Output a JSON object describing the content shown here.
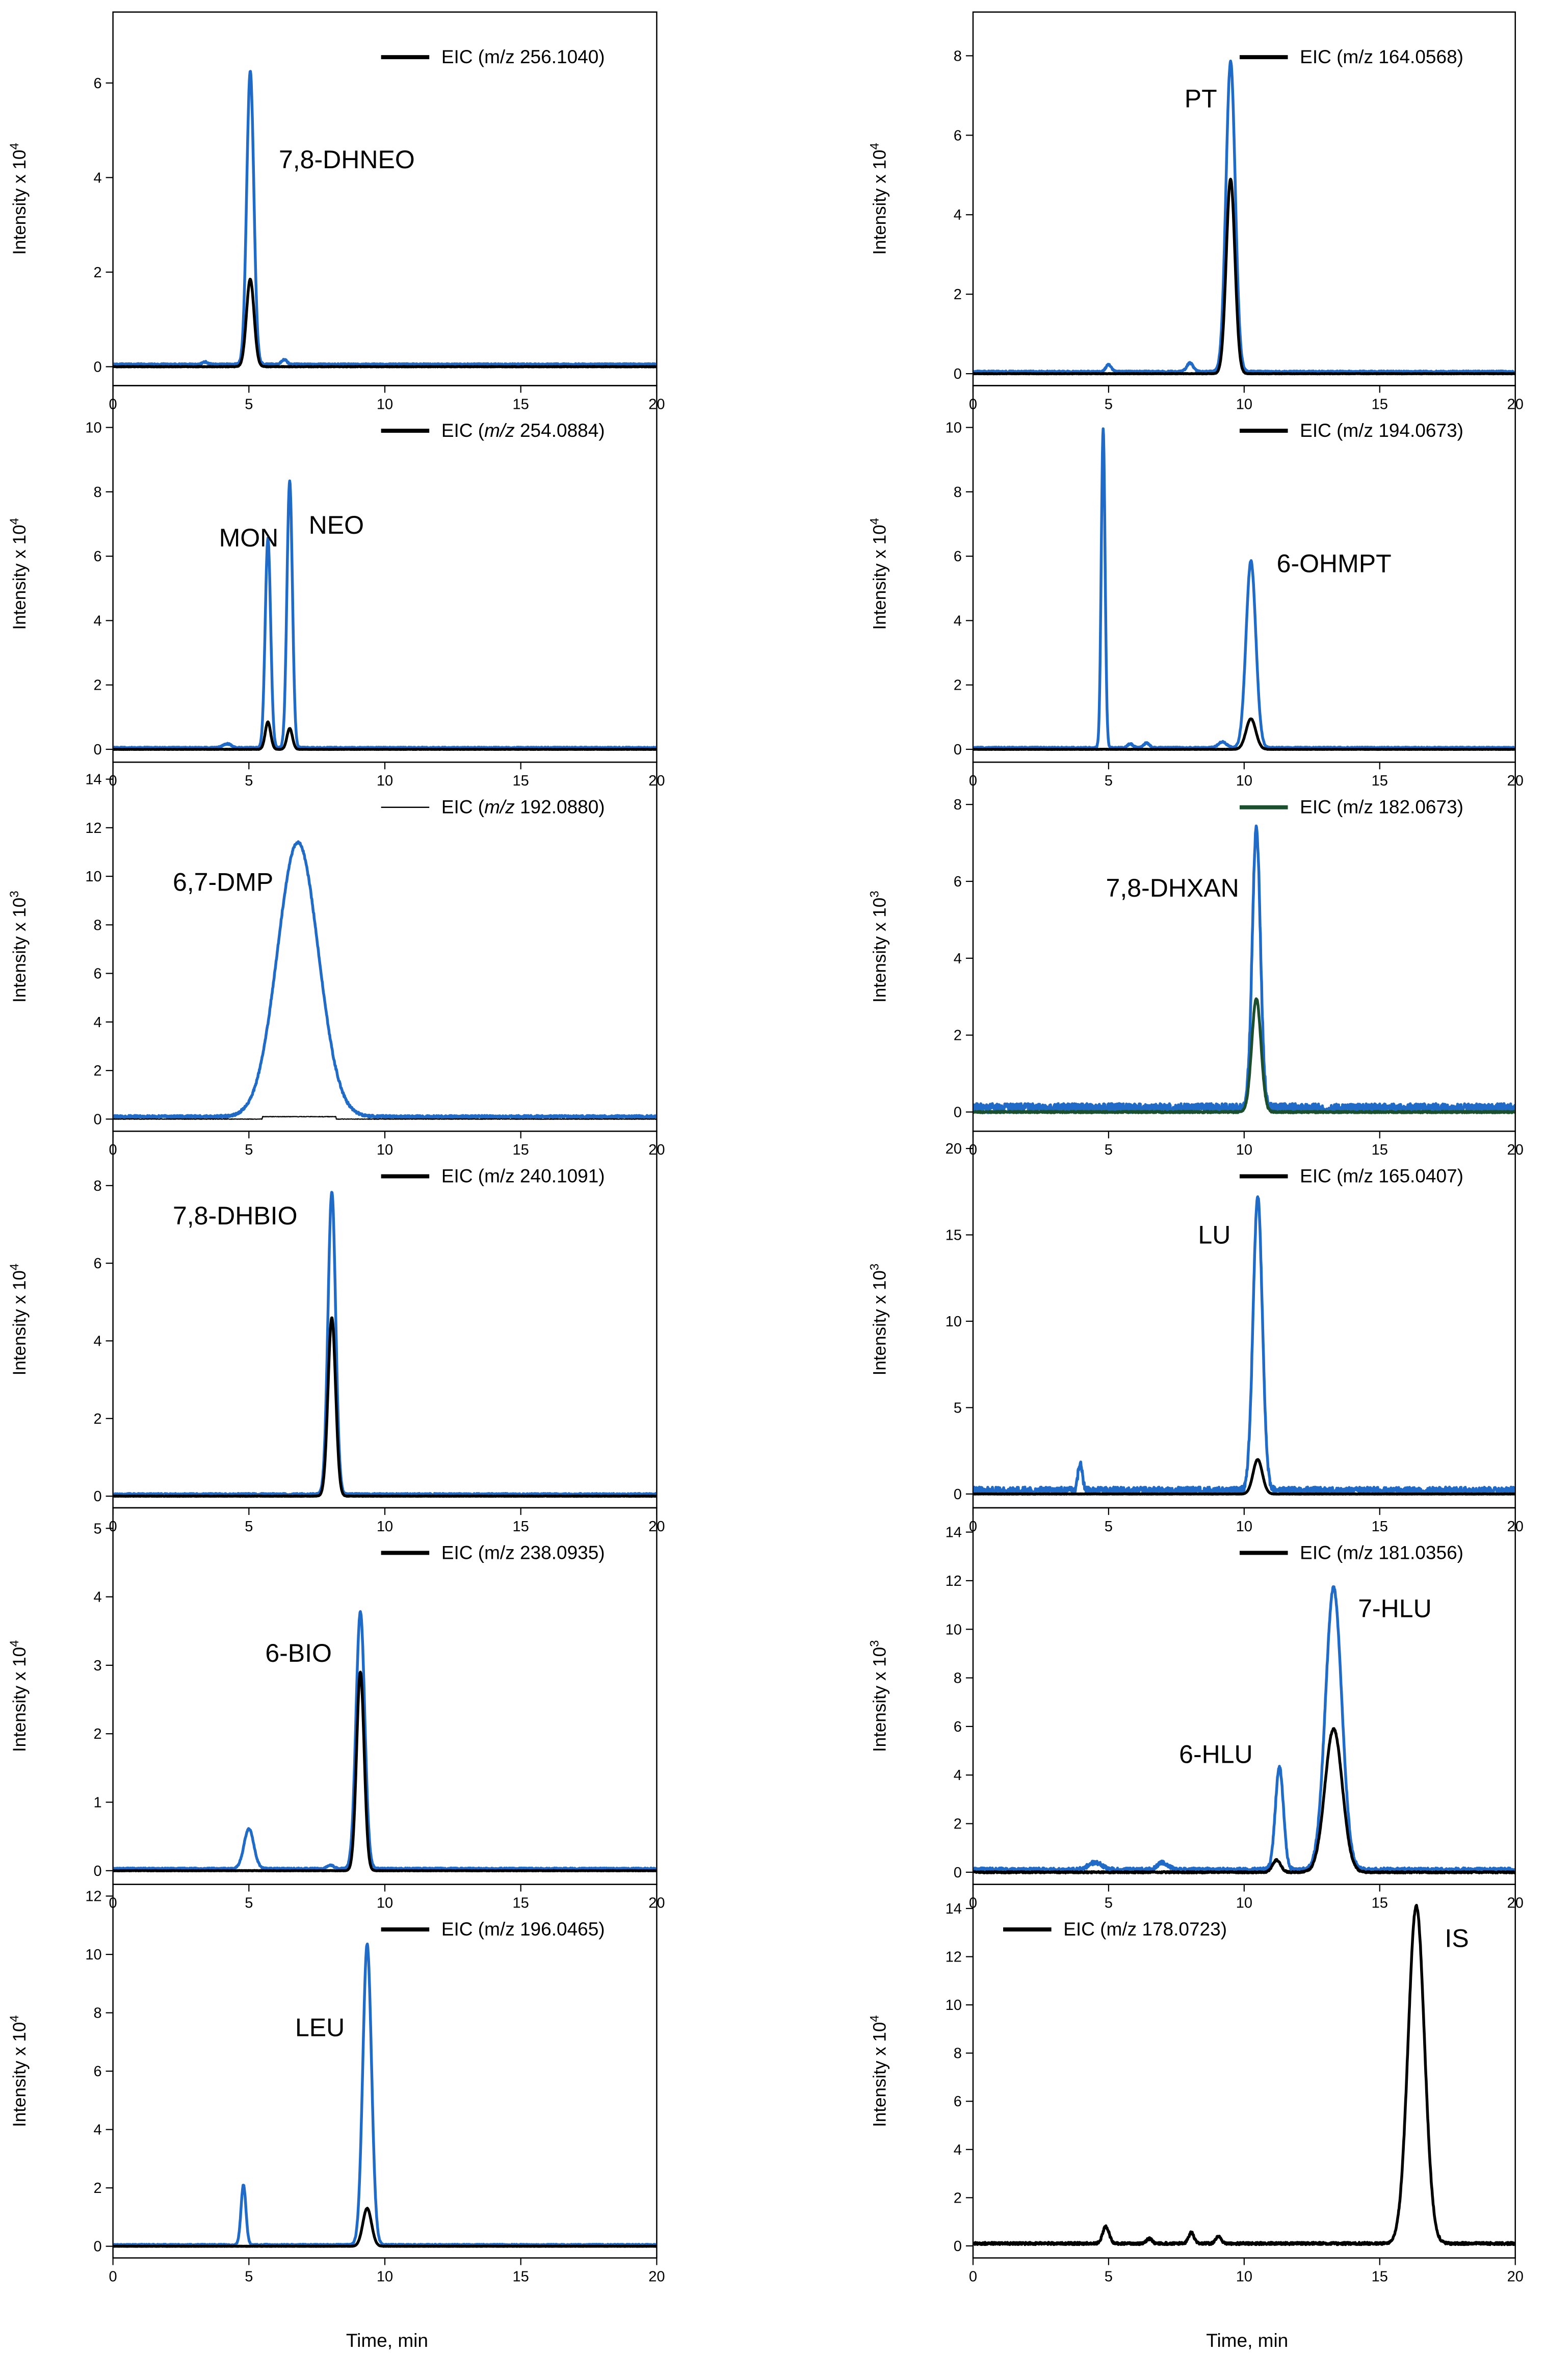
{
  "figure": {
    "xlabel_text": "Time, min",
    "colors": {
      "blue": "#1f6bc7",
      "black": "#000000",
      "green": "#1b4f2e",
      "frame": "#000000"
    }
  },
  "chart_data": [
    {
      "type": "line",
      "panel": "L1",
      "title": "",
      "xlabel": "Time, min",
      "ylabel": "Intensity x 10^4",
      "y_exponent": "4",
      "xlim": [
        0,
        20
      ],
      "ylim": [
        -0.4,
        7.5
      ],
      "yticks": [
        0,
        2,
        4,
        6
      ],
      "xticks": [
        0,
        5,
        10,
        15,
        20
      ],
      "show_xticklabels": true,
      "legend": {
        "prefix": "EIC (m/z 256.1040)",
        "italic_mz": false,
        "position": "top-right",
        "color": "#000000"
      },
      "annotations": [
        {
          "text": "7,8-DHNEO",
          "x": 6.1,
          "y": 4.2
        }
      ],
      "baseline": {
        "blue": 0.05,
        "black": 0.0
      },
      "series": [
        {
          "name": "blue trace",
          "color": "#1f6bc7",
          "peaks": [
            {
              "x": 5.05,
              "y": 6.2,
              "w": 0.13
            },
            {
              "x": 3.4,
              "y": 0.05,
              "w": 0.1
            },
            {
              "x": 6.3,
              "y": 0.1,
              "w": 0.1
            }
          ],
          "noise": 0.015
        },
        {
          "name": "EIC (m/z 256.1040)",
          "color": "#000000",
          "peaks": [
            {
              "x": 5.05,
              "y": 1.85,
              "w": 0.14
            }
          ],
          "noise": 0.005
        }
      ]
    },
    {
      "type": "line",
      "panel": "L2",
      "title": "",
      "xlabel": "Time, min",
      "ylabel": "Intensity x 10^4",
      "y_exponent": "4",
      "xlim": [
        0,
        20
      ],
      "ylim": [
        -0.4,
        11.3
      ],
      "yticks": [
        0,
        2,
        4,
        6,
        8,
        10
      ],
      "xticks": [
        0,
        5,
        10,
        15,
        20
      ],
      "show_xticklabels": true,
      "legend": {
        "prefix": "EIC (",
        "mz": "m/z",
        "value": "254.0884)",
        "italic_mz": true,
        "position": "top-right",
        "color": "#000000"
      },
      "annotations": [
        {
          "text": "MON",
          "x": 3.9,
          "y": 6.3
        },
        {
          "text": "NEO",
          "x": 7.2,
          "y": 6.7
        }
      ],
      "baseline": {
        "blue": 0.05,
        "black": 0.0
      },
      "series": [
        {
          "name": "blue trace",
          "color": "#1f6bc7",
          "peaks": [
            {
              "x": 5.7,
              "y": 6.5,
              "w": 0.1
            },
            {
              "x": 6.5,
              "y": 8.3,
              "w": 0.1
            },
            {
              "x": 4.2,
              "y": 0.12,
              "w": 0.15
            }
          ],
          "noise": 0.02
        },
        {
          "name": "EIC (m/z 254.0884)",
          "color": "#000000",
          "peaks": [
            {
              "x": 5.7,
              "y": 0.85,
              "w": 0.1
            },
            {
              "x": 6.5,
              "y": 0.65,
              "w": 0.1
            }
          ],
          "noise": 0.005
        }
      ]
    },
    {
      "type": "line",
      "panel": "L3",
      "title": "",
      "xlabel": "Time, min",
      "ylabel": "Intensity x 10^3",
      "y_exponent": "3",
      "xlim": [
        0,
        20
      ],
      "ylim": [
        -0.5,
        14.7
      ],
      "yticks": [
        0,
        2,
        4,
        6,
        8,
        10,
        12,
        14
      ],
      "xticks": [
        0,
        5,
        10,
        15,
        20
      ],
      "show_xticklabels": true,
      "legend": {
        "prefix": "EIC (",
        "mz": "m/z",
        "value": "192.0880)",
        "italic_mz": true,
        "position": "top-right",
        "color": "#000000",
        "thin": true
      },
      "annotations": [
        {
          "text": "6,7-DMP",
          "x": 2.2,
          "y": 9.4
        }
      ],
      "baseline": {
        "blue": 0.1,
        "black": 0.0
      },
      "series": [
        {
          "name": "blue trace",
          "color": "#1f6bc7",
          "peaks": [
            {
              "x": 6.8,
              "y": 11.3,
              "w": 0.75
            }
          ],
          "noise": 0.05
        },
        {
          "name": "EIC (m/z 192.0880)",
          "color": "#000000",
          "segment": [
            5.5,
            8.2,
            0.1
          ],
          "noise": 0.01
        }
      ]
    },
    {
      "type": "line",
      "panel": "L4",
      "title": "",
      "xlabel": "Time, min",
      "ylabel": "Intensity x 10^4",
      "y_exponent": "4",
      "xlim": [
        0,
        20
      ],
      "ylim": [
        -0.3,
        9.4
      ],
      "yticks": [
        0,
        2,
        4,
        6,
        8
      ],
      "xticks": [
        0,
        5,
        10,
        15,
        20
      ],
      "show_xticklabels": true,
      "legend": {
        "prefix": "EIC (m/z 240.1091)",
        "italic_mz": false,
        "position": "top-right",
        "color": "#000000"
      },
      "annotations": [
        {
          "text": "7,8-DHBIO",
          "x": 2.2,
          "y": 7.0
        }
      ],
      "baseline": {
        "blue": 0.05,
        "black": 0.0
      },
      "series": [
        {
          "name": "blue trace",
          "color": "#1f6bc7",
          "peaks": [
            {
              "x": 8.05,
              "y": 7.8,
              "w": 0.14
            }
          ],
          "noise": 0.02
        },
        {
          "name": "EIC (m/z 240.1091)",
          "color": "#000000",
          "peaks": [
            {
              "x": 8.05,
              "y": 4.6,
              "w": 0.14
            }
          ],
          "noise": 0.005
        }
      ]
    },
    {
      "type": "line",
      "panel": "L5",
      "title": "",
      "xlabel": "Time, min",
      "ylabel": "Intensity x 10^4",
      "y_exponent": "4",
      "xlim": [
        0,
        20
      ],
      "ylim": [
        -0.2,
        5.3
      ],
      "yticks": [
        0,
        1,
        2,
        3,
        4,
        5
      ],
      "xticks": [
        0,
        5,
        10,
        15,
        20
      ],
      "show_xticklabels": true,
      "legend": {
        "prefix": "EIC (m/z 238.0935)",
        "italic_mz": false,
        "position": "top-right",
        "color": "#000000"
      },
      "annotations": [
        {
          "text": "6-BIO",
          "x": 5.6,
          "y": 3.05
        }
      ],
      "baseline": {
        "blue": 0.03,
        "black": 0.0
      },
      "series": [
        {
          "name": "blue trace",
          "color": "#1f6bc7",
          "peaks": [
            {
              "x": 9.1,
              "y": 3.75,
              "w": 0.16
            },
            {
              "x": 5.0,
              "y": 0.58,
              "w": 0.18
            },
            {
              "x": 8.0,
              "y": 0.05,
              "w": 0.12
            }
          ],
          "noise": 0.01
        },
        {
          "name": "EIC (m/z 238.0935)",
          "color": "#000000",
          "peaks": [
            {
              "x": 9.1,
              "y": 2.9,
              "w": 0.14
            }
          ],
          "noise": 0.003
        }
      ]
    },
    {
      "type": "line",
      "panel": "L6",
      "title": "",
      "xlabel": "Time, min",
      "ylabel": "Intensity x 10^4",
      "y_exponent": "4",
      "xlim": [
        0,
        20
      ],
      "ylim": [
        -0.4,
        12.4
      ],
      "yticks": [
        0,
        2,
        4,
        6,
        8,
        10,
        12
      ],
      "xticks": [
        0,
        5,
        10,
        15,
        20
      ],
      "show_xticklabels": true,
      "legend": {
        "prefix": "EIC (m/z 196.0465)",
        "italic_mz": false,
        "position": "top-right",
        "color": "#000000"
      },
      "annotations": [
        {
          "text": "LEU",
          "x": 6.7,
          "y": 7.2
        }
      ],
      "baseline": {
        "blue": 0.05,
        "black": 0.0
      },
      "series": [
        {
          "name": "blue trace",
          "color": "#1f6bc7",
          "peaks": [
            {
              "x": 9.35,
              "y": 10.3,
              "w": 0.16
            },
            {
              "x": 4.8,
              "y": 2.05,
              "w": 0.09
            }
          ],
          "noise": 0.02
        },
        {
          "name": "EIC (m/z 196.0465)",
          "color": "#000000",
          "peaks": [
            {
              "x": 9.35,
              "y": 1.3,
              "w": 0.16
            }
          ],
          "noise": 0.005
        }
      ]
    },
    {
      "type": "line",
      "panel": "R1",
      "title": "",
      "xlabel": "Time, min",
      "ylabel": "Intensity x 10^4",
      "y_exponent": "4",
      "xlim": [
        0,
        20
      ],
      "ylim": [
        -0.3,
        9.1
      ],
      "yticks": [
        0,
        2,
        4,
        6,
        8
      ],
      "xticks": [
        0,
        5,
        10,
        15,
        20
      ],
      "show_xticklabels": true,
      "legend": {
        "prefix": "EIC (m/z 164.0568)",
        "italic_mz": false,
        "position": "top-right",
        "color": "#000000"
      },
      "annotations": [
        {
          "text": "PT",
          "x": 7.8,
          "y": 6.7
        }
      ],
      "baseline": {
        "blue": 0.05,
        "black": 0.0
      },
      "series": [
        {
          "name": "blue trace",
          "color": "#1f6bc7",
          "peaks": [
            {
              "x": 9.5,
              "y": 7.8,
              "w": 0.17
            },
            {
              "x": 5.0,
              "y": 0.18,
              "w": 0.1
            },
            {
              "x": 8.0,
              "y": 0.22,
              "w": 0.12
            }
          ],
          "noise": 0.02
        },
        {
          "name": "EIC (m/z 164.0568)",
          "color": "#000000",
          "peaks": [
            {
              "x": 9.5,
              "y": 4.9,
              "w": 0.16
            }
          ],
          "noise": 0.005
        }
      ]
    },
    {
      "type": "line",
      "panel": "R2",
      "title": "",
      "xlabel": "Time, min",
      "ylabel": "Intensity x 10^4",
      "y_exponent": "4",
      "xlim": [
        0,
        20
      ],
      "ylim": [
        -0.4,
        11.3
      ],
      "yticks": [
        0,
        2,
        4,
        6,
        8,
        10
      ],
      "xticks": [
        0,
        5,
        10,
        15,
        20
      ],
      "show_xticklabels": true,
      "legend": {
        "prefix": "EIC (m/z 194.0673)",
        "italic_mz": false,
        "position": "top-right",
        "color": "#000000"
      },
      "annotations": [
        {
          "text": "6-OHMPT",
          "x": 11.2,
          "y": 5.5
        }
      ],
      "baseline": {
        "blue": 0.05,
        "black": 0.0
      },
      "series": [
        {
          "name": "blue trace",
          "color": "#1f6bc7",
          "peaks": [
            {
              "x": 4.8,
              "y": 9.9,
              "w": 0.07
            },
            {
              "x": 10.25,
              "y": 5.8,
              "w": 0.18
            },
            {
              "x": 5.8,
              "y": 0.12,
              "w": 0.1
            },
            {
              "x": 6.4,
              "y": 0.15,
              "w": 0.1
            },
            {
              "x": 9.2,
              "y": 0.18,
              "w": 0.15
            }
          ],
          "noise": 0.02
        },
        {
          "name": "EIC (m/z 194.0673)",
          "color": "#000000",
          "peaks": [
            {
              "x": 10.25,
              "y": 0.95,
              "w": 0.18
            }
          ],
          "noise": 0.005
        }
      ]
    },
    {
      "type": "line",
      "panel": "R3",
      "title": "",
      "xlabel": "Time, min",
      "ylabel": "Intensity x 10^3",
      "y_exponent": "3",
      "xlim": [
        0,
        20
      ],
      "ylim": [
        -0.5,
        9.1
      ],
      "yticks": [
        0,
        2,
        4,
        6,
        8
      ],
      "xticks": [
        0,
        5,
        10,
        15,
        20
      ],
      "show_xticklabels": true,
      "legend": {
        "prefix": "EIC (m/z 182.0673)",
        "italic_mz": false,
        "position": "top-right",
        "color": "#1b4f2e"
      },
      "annotations": [
        {
          "text": "7,8-DHXAN",
          "x": 4.9,
          "y": 5.6
        }
      ],
      "baseline": {
        "blue": 0.1,
        "black": 0.0
      },
      "series": [
        {
          "name": "blue trace",
          "color": "#1f6bc7",
          "peaks": [
            {
              "x": 10.45,
              "y": 7.3,
              "w": 0.15
            }
          ],
          "noise": 0.12
        },
        {
          "name": "EIC (m/z 182.0673)",
          "color": "#1b4f2e",
          "peaks": [
            {
              "x": 10.45,
              "y": 2.95,
              "w": 0.17
            }
          ],
          "noise": 0.02
        }
      ]
    },
    {
      "type": "line",
      "panel": "R4",
      "title": "",
      "xlabel": "Time, min",
      "ylabel": "Intensity x 10^3",
      "y_exponent": "3",
      "xlim": [
        0,
        20
      ],
      "ylim": [
        -0.8,
        21.0
      ],
      "yticks": [
        0,
        5,
        10,
        15,
        20
      ],
      "xticks": [
        0,
        5,
        10,
        15,
        20
      ],
      "show_xticklabels": true,
      "legend": {
        "prefix": "EIC (m/z 165.0407)",
        "italic_mz": false,
        "position": "top-right",
        "color": "#000000"
      },
      "annotations": [
        {
          "text": "LU",
          "x": 8.3,
          "y": 14.5
        }
      ],
      "baseline": {
        "blue": 0.2,
        "black": 0.0
      },
      "series": [
        {
          "name": "blue trace",
          "color": "#1f6bc7",
          "peaks": [
            {
              "x": 10.5,
              "y": 17.0,
              "w": 0.17
            },
            {
              "x": 3.95,
              "y": 1.6,
              "w": 0.08
            }
          ],
          "noise": 0.2
        },
        {
          "name": "EIC (m/z 165.0407)",
          "color": "#000000",
          "peaks": [
            {
              "x": 10.5,
              "y": 2.0,
              "w": 0.17
            }
          ],
          "noise": 0.01
        }
      ]
    },
    {
      "type": "line",
      "panel": "R5",
      "title": "",
      "xlabel": "Time, min",
      "ylabel": "Intensity x 10^3",
      "y_exponent": "3",
      "xlim": [
        0,
        20
      ],
      "ylim": [
        -0.5,
        15.0
      ],
      "yticks": [
        0,
        2,
        4,
        6,
        8,
        10,
        12,
        14
      ],
      "xticks": [
        0,
        5,
        10,
        15,
        20
      ],
      "show_xticklabels": true,
      "legend": {
        "prefix": "EIC (m/z 181.0356)",
        "italic_mz": false,
        "position": "top-right",
        "color": "#000000"
      },
      "annotations": [
        {
          "text": "7-HLU",
          "x": 14.2,
          "y": 10.5
        },
        {
          "text": "6-HLU",
          "x": 7.6,
          "y": 4.5
        }
      ],
      "baseline": {
        "blue": 0.1,
        "black": 0.0
      },
      "series": [
        {
          "name": "blue trace",
          "color": "#1f6bc7",
          "peaks": [
            {
              "x": 13.3,
              "y": 11.6,
              "w": 0.3
            },
            {
              "x": 11.3,
              "y": 4.2,
              "w": 0.15
            },
            {
              "x": 4.5,
              "y": 0.3,
              "w": 0.25
            },
            {
              "x": 7.0,
              "y": 0.3,
              "w": 0.2
            }
          ],
          "noise": 0.08
        },
        {
          "name": "EIC (m/z 181.0356)",
          "color": "#000000",
          "peaks": [
            {
              "x": 13.3,
              "y": 5.9,
              "w": 0.32
            },
            {
              "x": 11.2,
              "y": 0.5,
              "w": 0.15
            }
          ],
          "noise": 0.03
        }
      ]
    },
    {
      "type": "line",
      "panel": "R6",
      "title": "",
      "xlabel": "Time, min",
      "ylabel": "Intensity x 10^4",
      "y_exponent": "4",
      "xlim": [
        0,
        20
      ],
      "ylim": [
        -0.5,
        15.0
      ],
      "yticks": [
        0,
        2,
        4,
        6,
        8,
        10,
        12,
        14
      ],
      "xticks": [
        0,
        5,
        10,
        15,
        20
      ],
      "show_xticklabels": true,
      "legend": {
        "prefix": "EIC (m/z 178.0723)",
        "italic_mz": false,
        "position": "top-left",
        "color": "#000000"
      },
      "annotations": [
        {
          "text": "IS",
          "x": 17.4,
          "y": 12.4
        }
      ],
      "baseline": {
        "blue": null,
        "black": 0.1
      },
      "series": [
        {
          "name": "EIC (m/z 178.0723)",
          "color": "#000000",
          "peaks": [
            {
              "x": 16.35,
              "y": 14.0,
              "w": 0.3
            },
            {
              "x": 4.9,
              "y": 0.7,
              "w": 0.12
            },
            {
              "x": 6.5,
              "y": 0.2,
              "w": 0.1
            },
            {
              "x": 8.05,
              "y": 0.45,
              "w": 0.1
            },
            {
              "x": 9.05,
              "y": 0.3,
              "w": 0.1
            }
          ],
          "noise": 0.05
        }
      ]
    }
  ]
}
